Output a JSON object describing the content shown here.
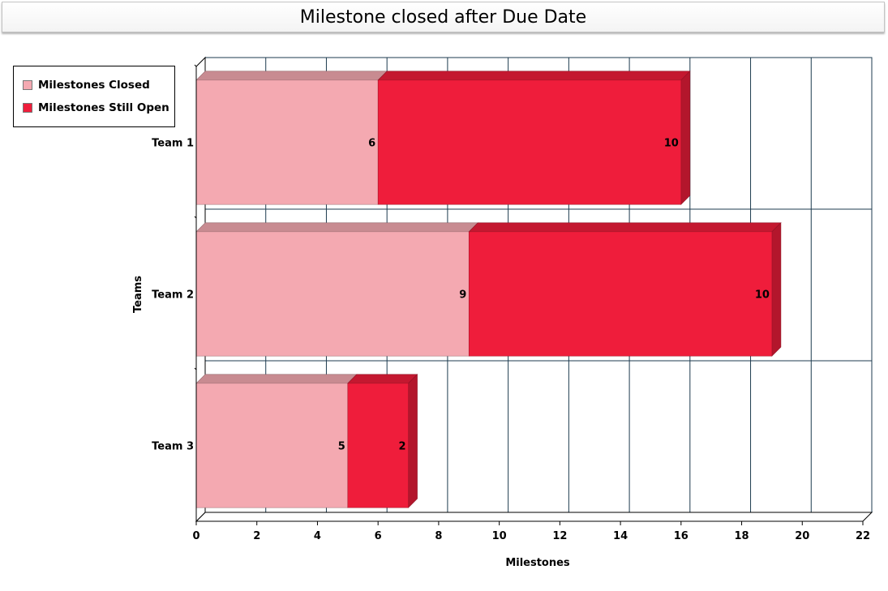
{
  "chart_data": {
    "type": "bar",
    "orientation": "horizontal",
    "stacked": true,
    "title": "Milestone closed after Due Date",
    "xlabel": "Milestones",
    "ylabel": "Teams",
    "xlim": [
      0,
      22
    ],
    "x_ticks": [
      "0",
      "2",
      "4",
      "6",
      "8",
      "10",
      "12",
      "14",
      "16",
      "18",
      "20",
      "22"
    ],
    "categories": [
      "Team 1",
      "Team 2",
      "Team 3"
    ],
    "series": [
      {
        "name": "Milestones Closed",
        "values": [
          6,
          9,
          5
        ],
        "color": "#f4a9b1"
      },
      {
        "name": "Milestones Still Open",
        "values": [
          10,
          10,
          2
        ],
        "color": "#ef1d3b"
      }
    ],
    "legend_position": "top-left",
    "grid": true,
    "data_labels": true
  }
}
